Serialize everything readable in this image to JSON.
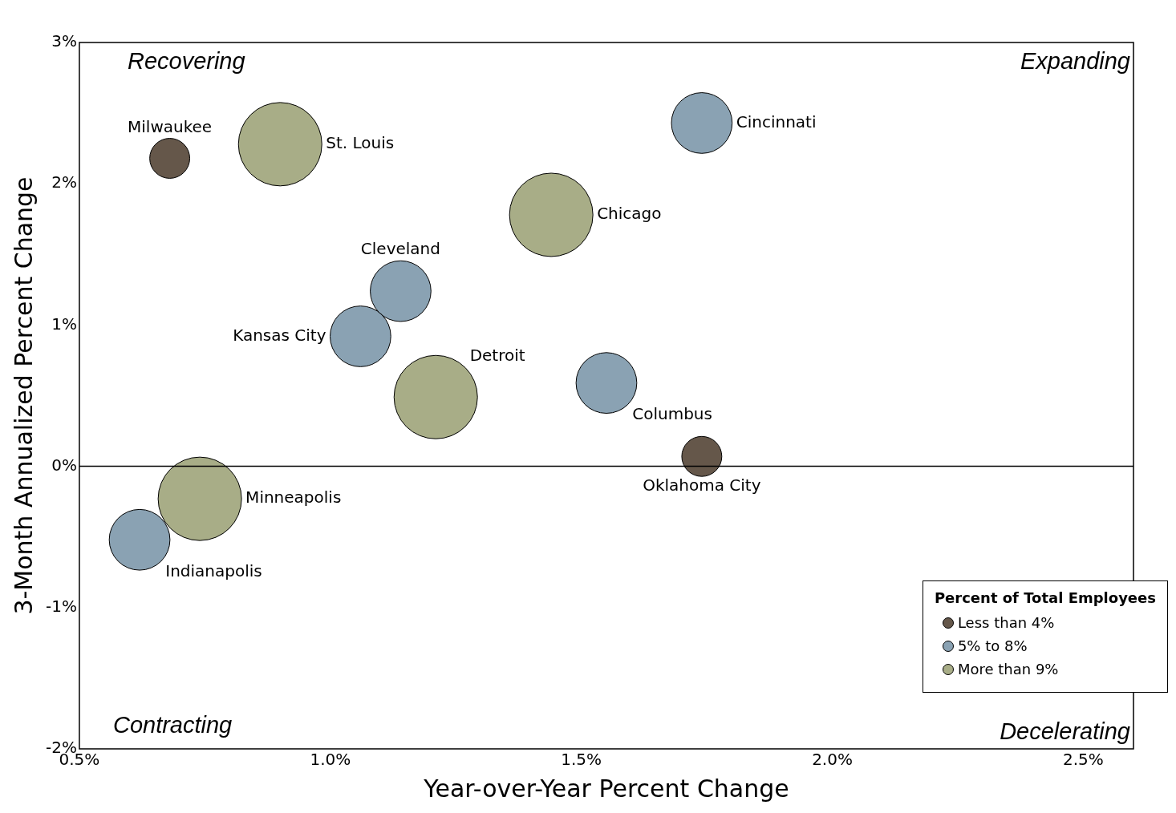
{
  "chart_data": {
    "type": "bubble",
    "xlabel": "Year-over-Year Percent Change",
    "ylabel": "3-Month Annualized Percent Change",
    "legend_title": "Percent of Total Employees",
    "legend": "bottom right",
    "marker": "circle",
    "grid": false,
    "xlim": [
      0.5,
      2.6
    ],
    "xticks": [
      {
        "value": 0.5,
        "label": "0.5%"
      },
      {
        "value": 1,
        "label": "1.0%"
      },
      {
        "value": 1.5,
        "label": "1.5%"
      },
      {
        "value": 2,
        "label": "2.0%"
      },
      {
        "value": 2.5,
        "label": "2.5%"
      }
    ],
    "ylim": [
      -2,
      3
    ],
    "yticks": [
      {
        "value": -2,
        "label": "-2%"
      },
      {
        "value": -1,
        "label": "-1%"
      },
      {
        "value": 0,
        "label": "0%"
      },
      {
        "value": 1,
        "label": "1%"
      },
      {
        "value": 2,
        "label": "2%"
      },
      {
        "value": 3,
        "label": "3%"
      }
    ],
    "ref_lines": [
      {
        "axis": "y",
        "value": 0,
        "color": "#000000"
      }
    ],
    "series": [
      {
        "name": "Less than 4%",
        "color": "#65574a",
        "x": [
          0.68,
          1.74
        ],
        "values": [
          2.18,
          0.07
        ],
        "sizes": [
          0.23,
          0.23
        ]
      },
      {
        "name": "5% to 8%",
        "color": "#8aa2b3",
        "x": [
          1.74,
          1.14,
          1.06,
          1.55,
          0.62
        ],
        "values": [
          2.43,
          1.24,
          0.92,
          0.59,
          -0.52
        ],
        "sizes": [
          0.53,
          0.53,
          0.53,
          0.53,
          0.53
        ]
      },
      {
        "name": "More than 9%",
        "color": "#a8ad87",
        "x": [
          0.9,
          1.44,
          1.21,
          0.74
        ],
        "values": [
          2.28,
          1.78,
          0.49,
          -0.23
        ],
        "sizes": [
          1,
          1,
          1,
          1
        ]
      }
    ],
    "annotations": [
      "Recovering",
      "Expanding",
      "Contracting",
      "Decelerating",
      {
        "text": "Milwaukee",
        "x": 0.68,
        "y": 2.18
      },
      {
        "text": "St. Louis",
        "x": 0.9,
        "y": 2.28
      },
      {
        "text": "Cincinnati",
        "x": 1.74,
        "y": 2.43
      },
      {
        "text": "Chicago",
        "x": 1.44,
        "y": 1.78
      },
      {
        "text": "Cleveland",
        "x": 1.14,
        "y": 1.24
      },
      {
        "text": "Kansas City",
        "x": 1.06,
        "y": 0.92
      },
      {
        "text": "Detroit",
        "x": 1.21,
        "y": 0.49
      },
      {
        "text": "Columbus",
        "x": 1.55,
        "y": 0.59
      },
      {
        "text": "Oklahoma City",
        "x": 1.74,
        "y": 0.07
      },
      {
        "text": "Minneapolis",
        "x": 0.74,
        "y": -0.23
      },
      {
        "text": "Indianapolis",
        "x": 0.62,
        "y": -0.52
      }
    ]
  }
}
